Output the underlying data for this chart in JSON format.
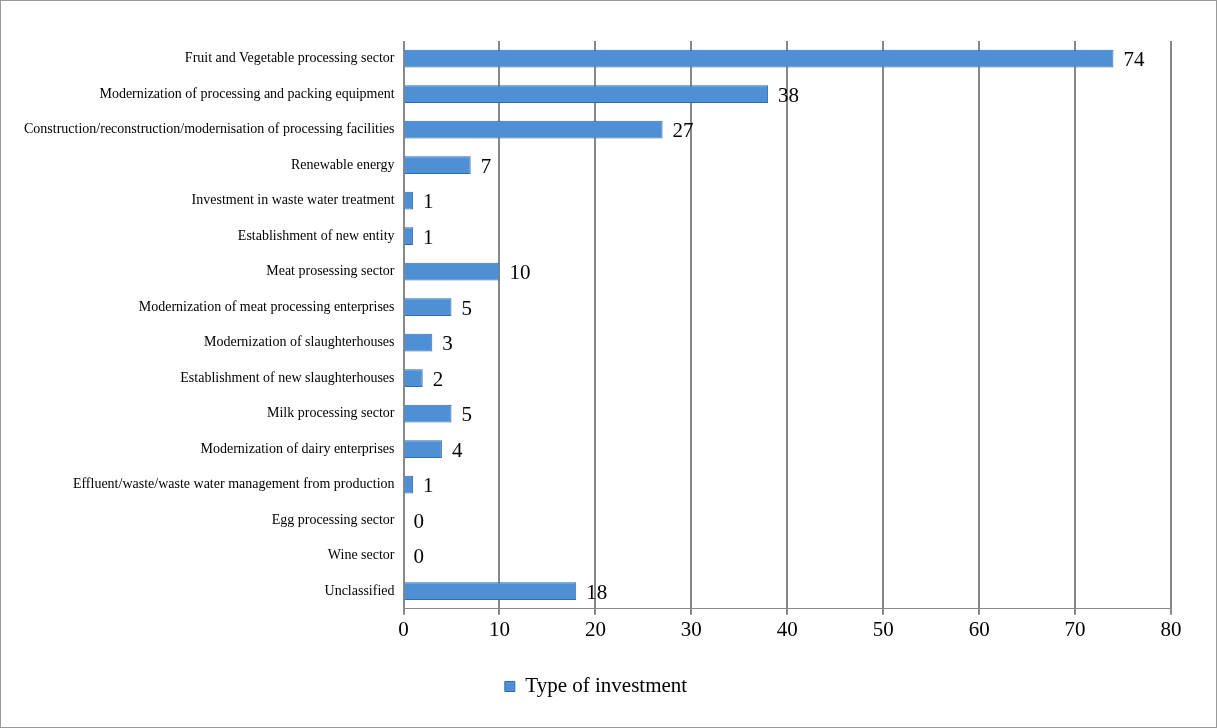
{
  "chart_data": {
    "type": "bar",
    "orientation": "horizontal",
    "categories": [
      "Fruit and Vegetable processing sector",
      "Modernization of processing and packing equipment",
      "Construction/reconstruction/modernisation of processing facilities",
      "Renewable energy",
      "Investment in waste water treatment",
      "Establishment of new entity",
      "Meat prosessing sector",
      "Modernization of meat processing enterprises",
      "Modernization of slaughterhouses",
      "Establishment of new slaughterhouses",
      "Milk processing sector",
      "Modernization of dairy enterprises",
      "Effluent/waste/waste water management from production",
      "Egg processing sector",
      "Wine sector",
      "Unclassified"
    ],
    "series": [
      {
        "name": "Type of investment",
        "color": "#4f8fd6",
        "values": [
          74,
          38,
          27,
          7,
          1,
          1,
          10,
          5,
          3,
          2,
          5,
          4,
          1,
          0,
          0,
          18
        ]
      }
    ],
    "xlim": [
      0,
      80
    ],
    "xticks": [
      0,
      10,
      20,
      30,
      40,
      50,
      60,
      70,
      80
    ],
    "grid": "x",
    "legend": "bottom",
    "data_labels": true
  }
}
